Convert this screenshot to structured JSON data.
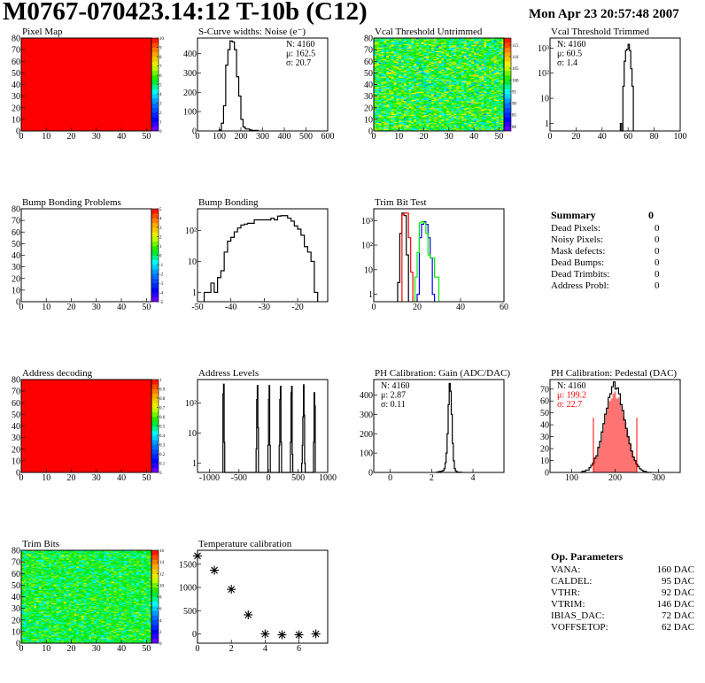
{
  "header": {
    "title": "M0767-070423.14:12 T-10b (C12)",
    "date": "Mon Apr 23 20:57:48 2007"
  },
  "chart_data": [
    {
      "type": "heatmap",
      "title": "Pixel Map",
      "xlim": [
        0,
        52
      ],
      "ylim": [
        0,
        80
      ],
      "zlim": [
        0,
        10
      ],
      "xticks": [
        0,
        10,
        20,
        30,
        40,
        50
      ],
      "xtick_labels": [
        "0",
        "10",
        "20",
        "30",
        "40",
        "50"
      ],
      "yticks": [
        0,
        10,
        20,
        30,
        40,
        50,
        60,
        70,
        80
      ],
      "ytick_labels": [
        "0",
        "10",
        "20",
        "30",
        "40",
        "50",
        "60",
        "70",
        "80"
      ],
      "zticks": [
        0,
        1,
        2,
        3,
        4,
        5,
        6,
        7,
        8,
        9,
        10
      ],
      "ztick_labels": [
        "0",
        "1",
        "2",
        "3",
        "4",
        "5",
        "6",
        "7",
        "8",
        "9",
        "10"
      ],
      "uniform_value": 10
    },
    {
      "type": "histogram",
      "title": "S-Curve widths: Noise (e⁻)",
      "xlim": [
        0,
        600
      ],
      "ylim": [
        0,
        480
      ],
      "log": false,
      "xticks": [
        0,
        100,
        200,
        300,
        400,
        500,
        600
      ],
      "xtick_labels": [
        "0",
        "100",
        "200",
        "300",
        "400",
        "500",
        "600"
      ],
      "yticks": [
        0,
        100,
        200,
        300,
        400
      ],
      "ytick_labels": [
        "0",
        "100",
        "200",
        "300",
        "400"
      ],
      "stats": {
        "position": "top-right",
        "lines": [
          "N: 4160",
          "μ: 162.5",
          "σ: 20.7"
        ]
      },
      "series": [
        {
          "color": "#000000",
          "x0": 100,
          "width": 10,
          "values": [
            5,
            40,
            130,
            340,
            420,
            465,
            460,
            420,
            280,
            180,
            60,
            20,
            10,
            10,
            5,
            3,
            3,
            3
          ]
        }
      ]
    },
    {
      "type": "heatmap",
      "title": "Vcal Threshold Untrimmed",
      "xlim": [
        0,
        52
      ],
      "ylim": [
        0,
        80
      ],
      "zlim": [
        78,
        118
      ],
      "xticks": [
        0,
        10,
        20,
        30,
        40,
        50
      ],
      "xtick_labels": [
        "0",
        "10",
        "20",
        "30",
        "40",
        "50"
      ],
      "yticks": [
        0,
        10,
        20,
        30,
        40,
        50,
        60,
        70,
        80
      ],
      "ytick_labels": [
        "0",
        "10",
        "20",
        "30",
        "40",
        "50",
        "60",
        "70",
        "80"
      ],
      "zticks": [
        80,
        85,
        90,
        95,
        100,
        105,
        110,
        115
      ],
      "ztick_labels": [
        "80",
        "85",
        "90",
        "95",
        "100",
        "105",
        "110",
        "115"
      ],
      "mean": 100,
      "spread": 4
    },
    {
      "type": "histogram",
      "title": "Vcal Threshold Trimmed",
      "xlim": [
        0,
        100
      ],
      "ylim": [
        0.5,
        2500
      ],
      "log": true,
      "xticks": [
        0,
        20,
        40,
        60,
        80,
        100
      ],
      "xtick_labels": [
        "0",
        "20",
        "40",
        "60",
        "80",
        "100"
      ],
      "yticks": [
        1,
        10,
        100,
        1000
      ],
      "ytick_labels": [
        "1",
        "10",
        "10²",
        "10³"
      ],
      "stats": {
        "position": "top-left",
        "lines": [
          "N: 4160",
          "μ: 60.5",
          "σ:  1.4"
        ]
      },
      "series": [
        {
          "color": "#000000",
          "x0": 54,
          "width": 1,
          "values": [
            1,
            0,
            30,
            300,
            800,
            900,
            1400,
            800,
            150,
            30
          ]
        }
      ]
    },
    {
      "type": "heatmap",
      "title": "Bump Bonding Problems",
      "xlim": [
        0,
        52
      ],
      "ylim": [
        0,
        80
      ],
      "zlim": [
        -5,
        5
      ],
      "xticks": [
        0,
        10,
        20,
        30,
        40,
        50
      ],
      "xtick_labels": [
        "0",
        "10",
        "20",
        "30",
        "40",
        "50"
      ],
      "yticks": [
        0,
        10,
        20,
        30,
        40,
        50,
        60,
        70,
        80
      ],
      "ytick_labels": [
        "0",
        "10",
        "20",
        "30",
        "40",
        "50",
        "60",
        "70",
        "80"
      ],
      "zticks": [
        -5,
        -4,
        -3,
        -2,
        -1,
        0,
        1,
        2,
        3,
        4,
        5
      ],
      "ztick_labels": [
        "-5",
        "-4",
        "-3",
        "-2",
        "-1",
        "0",
        "1",
        "2",
        "3",
        "4",
        "5"
      ],
      "empty": true
    },
    {
      "type": "histogram",
      "title": "Bump Bonding",
      "xlim": [
        -50,
        -11
      ],
      "ylim": [
        0.5,
        500
      ],
      "log": true,
      "xticks": [
        -50,
        -40,
        -30,
        -20
      ],
      "xtick_labels": [
        "-50",
        "-40",
        "-30",
        "-20"
      ],
      "yticks": [
        1,
        10,
        100
      ],
      "ytick_labels": [
        "1",
        "10",
        "10²"
      ],
      "series": [
        {
          "color": "#000000",
          "x0": -48,
          "width": 1,
          "values": [
            1,
            1,
            2,
            1,
            3,
            5,
            20,
            45,
            60,
            90,
            120,
            150,
            160,
            170,
            170,
            220,
            220,
            220,
            220,
            220,
            250,
            220,
            290,
            300,
            300,
            250,
            200,
            140,
            110,
            70,
            30,
            20,
            10,
            1
          ]
        }
      ]
    },
    {
      "type": "histogram",
      "title": "Trim Bit Test",
      "xlim": [
        0,
        60
      ],
      "ylim": [
        0.5,
        3000
      ],
      "log": true,
      "xticks": [
        0,
        20,
        40,
        60
      ],
      "xtick_labels": [
        "0",
        "20",
        "40",
        "60"
      ],
      "yticks": [
        1,
        10,
        100,
        1000
      ],
      "ytick_labels": [
        "1",
        "10",
        "10²",
        "10³"
      ],
      "series": [
        {
          "color": "#000000",
          "x0": 11,
          "width": 1,
          "values": [
            3,
            300,
            2000,
            1600,
            40
          ]
        },
        {
          "color": "#ff0000",
          "x0": 13,
          "width": 1,
          "values": [
            1700,
            2000,
            2000,
            200,
            8
          ]
        },
        {
          "color": "#0000ff",
          "x0": 20,
          "width": 1,
          "values": [
            1,
            200,
            700,
            900,
            700,
            200,
            30,
            1
          ]
        },
        {
          "color": "#00ee00",
          "x0": 19,
          "width": 1,
          "values": [
            5,
            50,
            800,
            900,
            800,
            300,
            40,
            30,
            30,
            5,
            5
          ]
        }
      ]
    },
    {
      "type": "heatmap",
      "title": "Address decoding",
      "xlim": [
        0,
        52
      ],
      "ylim": [
        0,
        80
      ],
      "zlim": [
        0,
        1
      ],
      "xticks": [
        0,
        10,
        20,
        30,
        40,
        50
      ],
      "xtick_labels": [
        "0",
        "10",
        "20",
        "30",
        "40",
        "50"
      ],
      "yticks": [
        0,
        10,
        20,
        30,
        40,
        50,
        60,
        70,
        80
      ],
      "ytick_labels": [
        "0",
        "10",
        "20",
        "30",
        "40",
        "50",
        "60",
        "70",
        "80"
      ],
      "zticks": [
        0,
        0.1,
        0.2,
        0.3,
        0.4,
        0.5,
        0.6,
        0.7,
        0.8,
        0.9,
        1
      ],
      "ztick_labels": [
        "0",
        "0.1",
        "0.2",
        "0.3",
        "0.4",
        "0.5",
        "0.6",
        "0.7",
        "0.8",
        "0.9",
        "1"
      ],
      "uniform_value": 1
    },
    {
      "type": "histogram",
      "title": "Address Levels",
      "xlim": [
        -1200,
        1000
      ],
      "ylim": [
        0.5,
        600
      ],
      "log": true,
      "xticks": [
        -1000,
        -500,
        0,
        500,
        1000
      ],
      "xtick_labels": [
        "-1000",
        "-500",
        "0",
        "500",
        "1000"
      ],
      "yticks": [
        1,
        10,
        100
      ],
      "ytick_labels": [
        "1",
        "10",
        "10²"
      ],
      "series": [
        {
          "color": "#000000",
          "width": 10,
          "bins": [
            [
              -770,
              200
            ],
            [
              -760,
              420
            ],
            [
              -750,
              5
            ],
            [
              -210,
              3
            ],
            [
              -200,
              130
            ],
            [
              -190,
              380
            ],
            [
              -180,
              15
            ],
            [
              -10,
              4
            ],
            [
              0,
              130
            ],
            [
              10,
              380
            ],
            [
              20,
              4
            ],
            [
              180,
              4
            ],
            [
              190,
              130
            ],
            [
              200,
              360
            ],
            [
              210,
              5
            ],
            [
              370,
              5
            ],
            [
              380,
              220
            ],
            [
              390,
              360
            ],
            [
              400,
              2
            ],
            [
              560,
              1
            ],
            [
              570,
              4
            ],
            [
              580,
              35
            ],
            [
              590,
              400
            ],
            [
              600,
              40
            ],
            [
              610,
              1
            ],
            [
              760,
              5
            ],
            [
              770,
              220
            ],
            [
              780,
              80
            ]
          ]
        }
      ]
    },
    {
      "type": "histogram",
      "title": "PH Calibration: Gain (ADC/DAC)",
      "xlim": [
        -0.8,
        5.5
      ],
      "ylim": [
        0,
        480
      ],
      "log": false,
      "xticks": [
        0,
        2,
        4
      ],
      "xtick_labels": [
        "0",
        "2",
        "4"
      ],
      "yticks": [
        0,
        100,
        200,
        300,
        400
      ],
      "ytick_labels": [
        "0",
        "100",
        "200",
        "300",
        "400"
      ],
      "stats": {
        "position": "top-left",
        "lines": [
          "N: 4160",
          "μ: 2.87",
          "σ: 0.11"
        ]
      },
      "series": [
        {
          "color": "#000000",
          "x0": 2.25,
          "width": 0.05,
          "values": [
            2,
            3,
            4,
            5,
            6,
            8,
            10,
            20,
            50,
            100,
            200,
            350,
            460,
            420,
            300,
            150,
            60,
            20,
            8,
            4,
            2,
            1,
            1,
            1
          ]
        }
      ]
    },
    {
      "type": "histogram",
      "title": "PH Calibration: Pedestal (DAC)",
      "xlim": [
        50,
        350
      ],
      "ylim": [
        0,
        78
      ],
      "log": false,
      "xticks": [
        100,
        200,
        300
      ],
      "xtick_labels": [
        "100",
        "200",
        "300"
      ],
      "yticks": [
        0,
        10,
        20,
        30,
        40,
        50,
        60,
        70
      ],
      "ytick_labels": [
        "0",
        "10",
        "20",
        "30",
        "40",
        "50",
        "60",
        "70"
      ],
      "stats": {
        "position": "top-left",
        "lines": [
          "N: 4160",
          "μ: 199.2",
          "σ: 22.7"
        ],
        "line_colors": [
          "#000000",
          "#ff0000",
          "#ff0000"
        ]
      },
      "series": [
        {
          "color": "#ff0000",
          "fill": true,
          "x0": 150,
          "width": 4,
          "values": [
            8,
            12,
            14,
            21,
            26,
            34,
            41,
            49,
            54,
            60,
            62,
            66,
            68,
            62,
            63,
            59,
            52,
            47,
            42,
            36,
            30,
            24,
            18,
            13,
            10
          ]
        },
        {
          "color": "#000000",
          "x0": 120,
          "width": 4,
          "values": [
            0,
            1,
            1,
            2,
            2,
            4,
            6,
            8,
            12,
            14,
            21,
            26,
            34,
            41,
            49,
            54,
            63,
            66,
            72,
            76,
            70,
            71,
            66,
            57,
            52,
            44,
            37,
            30,
            24,
            18,
            13,
            10,
            7,
            5,
            3,
            2,
            1,
            1,
            0,
            0,
            0
          ]
        }
      ],
      "markers": [
        {
          "x": 150,
          "y": 46,
          "color": "#ff0000"
        },
        {
          "x": 250,
          "y": 46,
          "color": "#ff0000"
        }
      ]
    },
    {
      "type": "heatmap",
      "title": "Trim Bits",
      "xlim": [
        0,
        52
      ],
      "ylim": [
        0,
        80
      ],
      "zlim": [
        0,
        16
      ],
      "xticks": [
        0,
        10,
        20,
        30,
        40,
        50
      ],
      "xtick_labels": [
        "0",
        "10",
        "20",
        "30",
        "40",
        "50"
      ],
      "yticks": [
        0,
        10,
        20,
        30,
        40,
        50,
        60,
        70,
        80
      ],
      "ytick_labels": [
        "0",
        "10",
        "20",
        "30",
        "40",
        "50",
        "60",
        "70",
        "80"
      ],
      "zticks": [
        0,
        2,
        4,
        6,
        8,
        10,
        12,
        14,
        16
      ],
      "ztick_labels": [
        "0",
        "2",
        "4",
        "6",
        "8",
        "10",
        "12",
        "14",
        "16"
      ],
      "mean": 8.6,
      "spread": 1.1
    },
    {
      "type": "scatter",
      "title": "Temperature calibration",
      "xlim": [
        0,
        7.7
      ],
      "ylim": [
        -200,
        1800
      ],
      "log": false,
      "xticks": [
        0,
        2,
        4,
        6
      ],
      "xtick_labels": [
        "0",
        "2",
        "4",
        "6"
      ],
      "yticks": [
        0,
        500,
        1000,
        1500
      ],
      "ytick_labels": [
        "0",
        "500",
        "1000",
        "1500"
      ],
      "marker": "star",
      "x": [
        0,
        1,
        2,
        3,
        4,
        5,
        6,
        7
      ],
      "y": [
        1680,
        1370,
        960,
        410,
        0,
        -20,
        -20,
        0
      ]
    }
  ],
  "summary": {
    "title": "Summary",
    "total": "0",
    "items": [
      {
        "label": "Dead Pixels:",
        "value": "0"
      },
      {
        "label": "Noisy Pixels:",
        "value": "0"
      },
      {
        "label": "Mask defects:",
        "value": "0"
      },
      {
        "label": "Dead Bumps:",
        "value": "0"
      },
      {
        "label": "Dead Trimbits:",
        "value": "0"
      },
      {
        "label": "Address Probl:",
        "value": "0"
      }
    ]
  },
  "op_parameters": {
    "title": "Op. Parameters",
    "items": [
      {
        "label": "VANA:",
        "value": "160 DAC"
      },
      {
        "label": "CALDEL:",
        "value": "95 DAC"
      },
      {
        "label": "VTHR:",
        "value": "92 DAC"
      },
      {
        "label": "VTRIM:",
        "value": "146 DAC"
      },
      {
        "label": "IBIAS_DAC:",
        "value": "72 DAC"
      },
      {
        "label": "VOFFSETOP:",
        "value": "62 DAC"
      }
    ]
  }
}
